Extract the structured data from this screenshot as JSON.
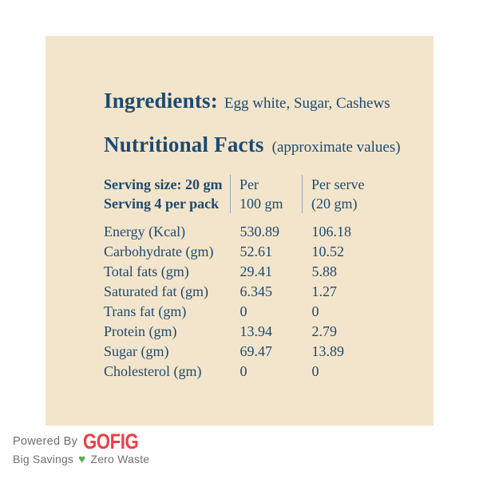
{
  "card": {
    "ingredients_label": "Ingredients:",
    "ingredients_value": "Egg white, Sugar, Cashews",
    "nutrition_title": "Nutritional Facts",
    "nutrition_subtitle": "(approximate values)",
    "table": {
      "header": {
        "serving_line1": "Serving size: 20 gm",
        "serving_line2": "Serving 4 per pack",
        "per100_line1": "Per",
        "per100_line2": "100 gm",
        "perserve_line1": "Per serve",
        "perserve_line2": "(20 gm)"
      },
      "rows": [
        {
          "label": "Energy (Kcal)",
          "per100": "530.89",
          "perserve": "106.18"
        },
        {
          "label": "Carbohydrate (gm)",
          "per100": "52.61",
          "perserve": "10.52"
        },
        {
          "label": "Total fats (gm)",
          "per100": "29.41",
          "perserve": "5.88"
        },
        {
          "label": "Saturated fat (gm)",
          "per100": "6.345",
          "perserve": "1.27"
        },
        {
          "label": "Trans fat (gm)",
          "per100": "0",
          "perserve": "0"
        },
        {
          "label": "Protein (gm)",
          "per100": "13.94",
          "perserve": "2.79"
        },
        {
          "label": "Sugar (gm)",
          "per100": "69.47",
          "perserve": "13.89"
        },
        {
          "label": "Cholesterol (gm)",
          "per100": "0",
          "perserve": "0"
        }
      ]
    }
  },
  "footer": {
    "powered_by": "Powered By",
    "brand": "GOFIG",
    "tagline_left": "Big Savings",
    "heart_icon": "♥",
    "tagline_right": "Zero Waste"
  },
  "colors": {
    "card_background": "#f3e5cc",
    "text_navy": "#1c4a70",
    "divider_blue_gray": "#95a7ba",
    "brand_red": "#ee3e47",
    "footer_gray": "#6f6f6f",
    "heart_green": "#55a94f"
  }
}
